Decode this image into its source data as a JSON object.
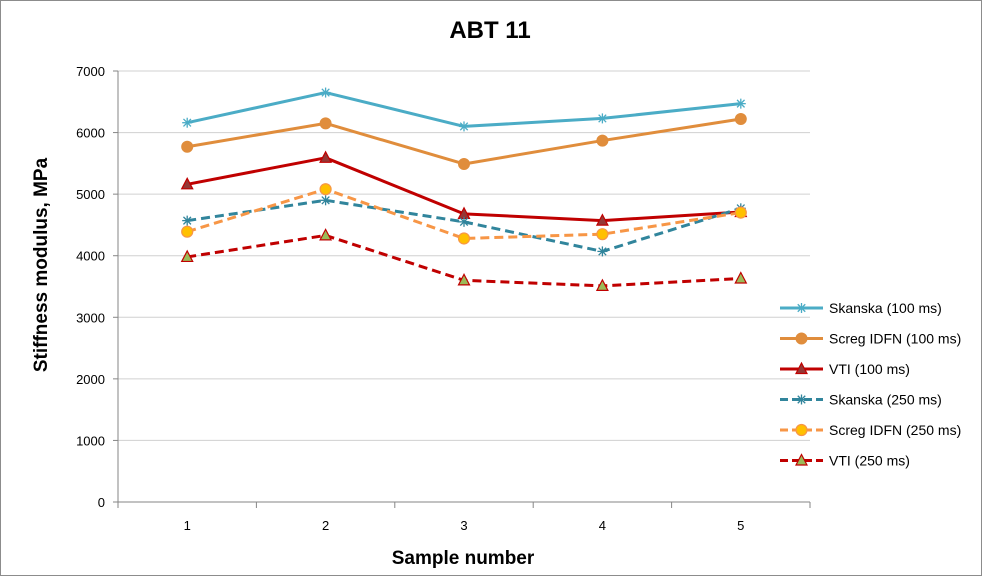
{
  "chart_data": {
    "type": "line",
    "title": "ABT 11",
    "xlabel": "Sample number",
    "ylabel": "Stiffness modulus, MPa",
    "x": [
      1,
      2,
      3,
      4,
      5
    ],
    "ylim": [
      0,
      7000
    ],
    "ystep": 1000,
    "grid": true,
    "legend_position": "right",
    "series": [
      {
        "name": "Skanska (100 ms)",
        "values": [
          6160,
          6650,
          6100,
          6230,
          6470
        ],
        "color": "#4bacc6",
        "dash": "solid",
        "marker": "star"
      },
      {
        "name": "Screg IDFN (100 ms)",
        "values": [
          5770,
          6150,
          5490,
          5870,
          6220
        ],
        "color": "#e08d3c",
        "dash": "solid",
        "marker": "circle"
      },
      {
        "name": "VTI (100 ms)",
        "values": [
          5160,
          5590,
          4680,
          4570,
          4710
        ],
        "color": "#c00000",
        "dash": "solid",
        "marker": "triangle"
      },
      {
        "name": "Skanska (250 ms)",
        "values": [
          4570,
          4900,
          4550,
          4070,
          4770
        ],
        "color": "#31859c",
        "dash": "dashed",
        "marker": "star"
      },
      {
        "name": "Screg IDFN (250 ms)",
        "values": [
          4390,
          5080,
          4280,
          4350,
          4700
        ],
        "color": "#f79646",
        "dash": "dashed",
        "marker": "circle-yellow"
      },
      {
        "name": "VTI (250 ms)",
        "values": [
          3980,
          4330,
          3600,
          3510,
          3630
        ],
        "color": "#c00000",
        "dash": "dashed",
        "marker": "triangle-green"
      }
    ]
  }
}
